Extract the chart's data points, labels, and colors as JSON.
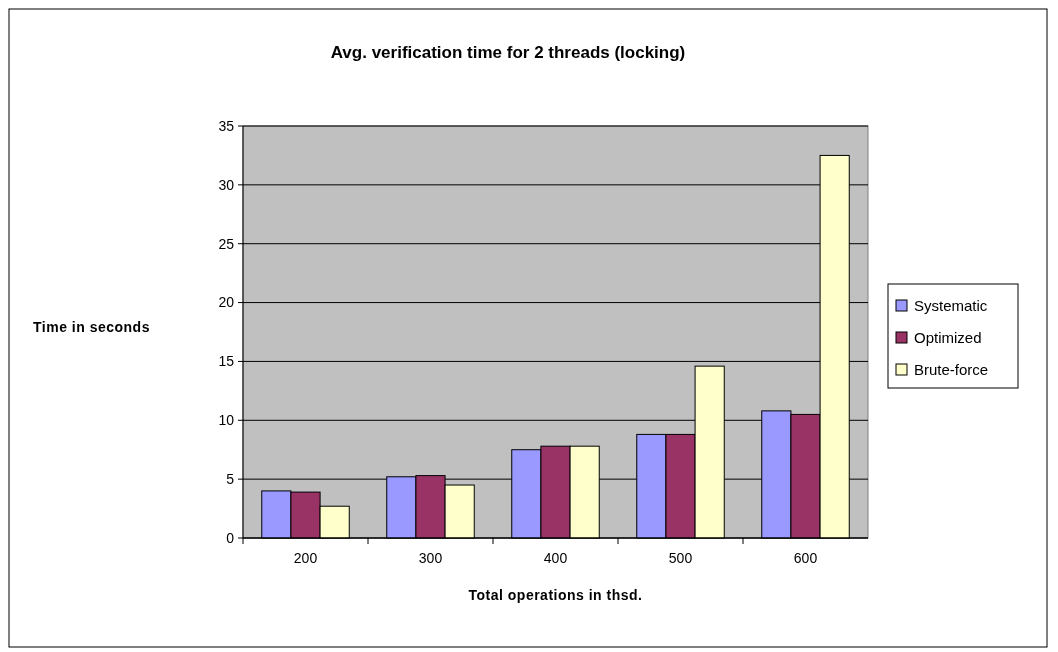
{
  "chart_data": {
    "type": "bar",
    "title": "Avg. verification time for 2 threads (locking)",
    "xlabel": "Total operations in thsd.",
    "ylabel": "Time in seconds",
    "categories": [
      "200",
      "300",
      "400",
      "500",
      "600"
    ],
    "series": [
      {
        "name": "Systematic",
        "color": "#9999ff",
        "values": [
          4.0,
          5.2,
          7.5,
          8.8,
          10.8
        ]
      },
      {
        "name": "Optimized",
        "color": "#993366",
        "values": [
          3.9,
          5.3,
          7.8,
          8.8,
          10.5
        ]
      },
      {
        "name": "Brute-force",
        "color": "#ffffcc",
        "values": [
          2.7,
          4.5,
          7.8,
          14.6,
          32.5
        ]
      }
    ],
    "ylim": [
      0,
      35
    ],
    "yticks": [
      0,
      5,
      10,
      15,
      20,
      25,
      30,
      35
    ],
    "grid": "y",
    "legend": "right"
  }
}
